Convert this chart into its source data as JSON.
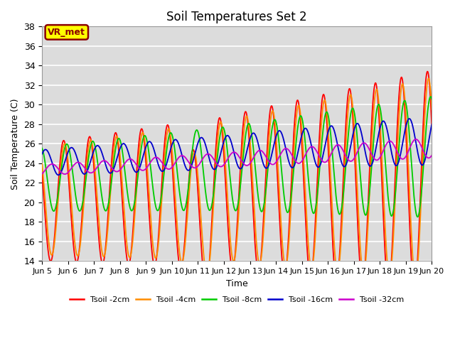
{
  "title": "Soil Temperatures Set 2",
  "xlabel": "Time",
  "ylabel": "Soil Temperature (C)",
  "ylim": [
    14,
    38
  ],
  "xlim_days": [
    0,
    15
  ],
  "bg_color": "#dcdcdc",
  "fig_bg": "#ffffff",
  "grid_color": "#ffffff",
  "annotation_text": "VR_met",
  "annotation_bg": "#ffff00",
  "annotation_border": "#8b0000",
  "series": [
    {
      "label": "Tsoil -2cm",
      "color": "#ff0000"
    },
    {
      "label": "Tsoil -4cm",
      "color": "#ff8c00"
    },
    {
      "label": "Tsoil -8cm",
      "color": "#00cc00"
    },
    {
      "label": "Tsoil -16cm",
      "color": "#0000cc"
    },
    {
      "label": "Tsoil -32cm",
      "color": "#cc00cc"
    }
  ],
  "xtick_labels": [
    "Jun 5",
    "Jun 6",
    "Jun 7",
    "Jun 8",
    "Jun 9",
    "Jun 10",
    "Jun 11",
    "Jun 12",
    "Jun 13",
    "Jun 14",
    "Jun 15",
    "Jun 16",
    "Jun 17",
    "Jun 18",
    "Jun 19",
    "Jun 20"
  ],
  "xtick_positions": [
    0,
    1,
    2,
    3,
    4,
    5,
    6,
    7,
    8,
    9,
    10,
    11,
    12,
    13,
    14,
    15
  ],
  "ytick_positions": [
    14,
    16,
    18,
    20,
    22,
    24,
    26,
    28,
    30,
    32,
    34,
    36,
    38
  ]
}
